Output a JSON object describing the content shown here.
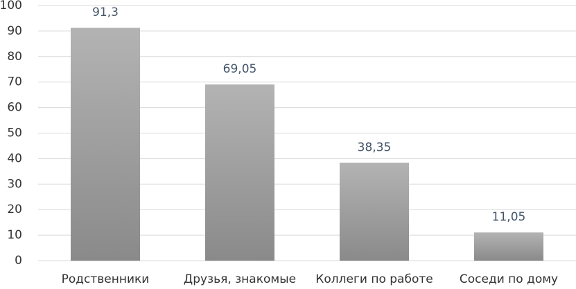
{
  "chart_data": {
    "type": "bar",
    "categories": [
      "Родственники",
      "Друзья, знакомые",
      "Коллеги по работе",
      "Соседи по дому"
    ],
    "values": [
      91.3,
      69.05,
      38.35,
      11.05
    ],
    "value_labels": [
      "91,3",
      "69,05",
      "38,35",
      "11,05"
    ],
    "color": "#9e9e9e",
    "ylim": [
      0,
      100
    ],
    "yticks": [
      0,
      10,
      20,
      30,
      40,
      50,
      60,
      70,
      80,
      90,
      100
    ],
    "grid": true
  }
}
